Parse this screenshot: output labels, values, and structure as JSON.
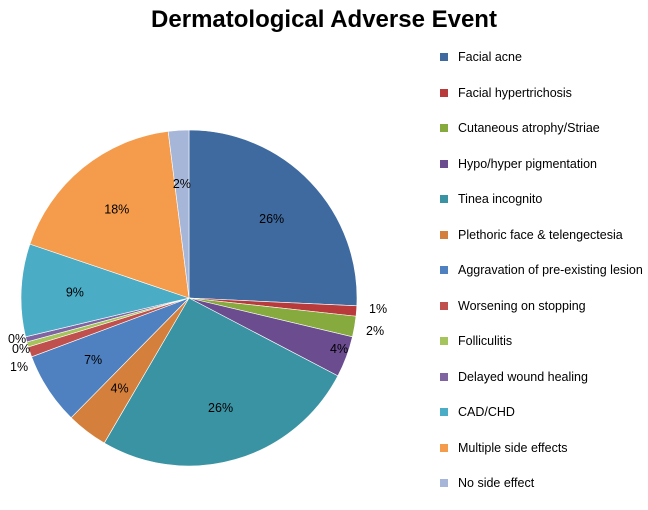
{
  "chart_data": {
    "type": "pie",
    "title": "Dermatological Adverse Event",
    "legend_position": "right",
    "slices": [
      {
        "label": "Facial acne",
        "value": 26,
        "display": "26%",
        "color": "#3f6aa0"
      },
      {
        "label": "Facial hypertrichosis",
        "value": 1,
        "display": "1%",
        "color": "#b83a3a"
      },
      {
        "label": "Cutaneous  atrophy/Striae",
        "value": 2,
        "display": "2%",
        "color": "#86aa3d"
      },
      {
        "label": "Hypo/hyper pigmentation",
        "value": 4,
        "display": "4%",
        "color": "#6a4c8f"
      },
      {
        "label": "Tinea incognito",
        "value": 26,
        "display": "26%",
        "color": "#3a93a3"
      },
      {
        "label": "Plethoric  face & telengectesia",
        "value": 4,
        "display": "4%",
        "color": "#d4803c"
      },
      {
        "label": "Aggravation  of pre-existing lesion",
        "value": 7,
        "display": "7%",
        "color": "#4f80c0"
      },
      {
        "label": "Worsening on stopping",
        "value": 1,
        "display": "1%",
        "color": "#c0504d"
      },
      {
        "label": "Folliculitis",
        "value": 0.5,
        "display": "0%",
        "color": "#a5c45b"
      },
      {
        "label": "Delayed wound healing",
        "value": 0.5,
        "display": "0%",
        "color": "#8064a2"
      },
      {
        "label": "CAD/CHD",
        "value": 9,
        "display": "9%",
        "color": "#4bacc6"
      },
      {
        "label": "Multiple side effects",
        "value": 18,
        "display": "18%",
        "color": "#f59b4c"
      },
      {
        "label": "No side effect",
        "value": 2,
        "display": "2%",
        "color": "#a6b6d8"
      }
    ]
  }
}
